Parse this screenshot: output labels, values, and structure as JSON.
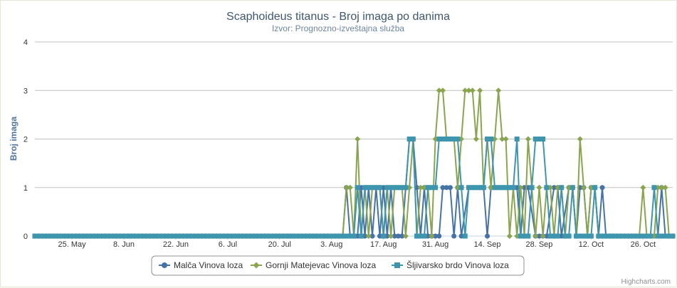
{
  "chart_data": {
    "type": "line",
    "title": "Scaphoideus titanus - Broj imaga po danima",
    "subtitle": "Izvor: Prognozno-izveštajna služba",
    "ylabel": "Broj imaga",
    "xlabel": "",
    "ylim": [
      0,
      4
    ],
    "yticks": [
      "0",
      "1",
      "2",
      "3",
      "4"
    ],
    "xlim": [
      "2012-05-15",
      "2012-11-03"
    ],
    "xticks": [
      {
        "date": "2012-05-25",
        "label": "25. May"
      },
      {
        "date": "2012-06-08",
        "label": "8. Jun"
      },
      {
        "date": "2012-06-22",
        "label": "22. Jun"
      },
      {
        "date": "2012-07-06",
        "label": "6. Jul"
      },
      {
        "date": "2012-07-20",
        "label": "20. Jul"
      },
      {
        "date": "2012-08-03",
        "label": "3. Aug"
      },
      {
        "date": "2012-08-17",
        "label": "17. Aug"
      },
      {
        "date": "2012-08-31",
        "label": "31. Aug"
      },
      {
        "date": "2012-09-14",
        "label": "14. Sep"
      },
      {
        "date": "2012-09-28",
        "label": "28. Sep"
      },
      {
        "date": "2012-10-12",
        "label": "12. Oct"
      },
      {
        "date": "2012-10-26",
        "label": "26. Oct"
      }
    ],
    "grid": true,
    "legend_position": "bottom-center",
    "credit": "Highcharts.com",
    "series": [
      {
        "name": "Malča Vinova loza",
        "color": "#4572a7",
        "marker": "circle",
        "points": [
          [
            "2012-05-15",
            0
          ],
          [
            "2012-08-06",
            0
          ],
          [
            "2012-08-07",
            1
          ],
          [
            "2012-08-08",
            0
          ],
          [
            "2012-08-10",
            0
          ],
          [
            "2012-08-11",
            1
          ],
          [
            "2012-08-12",
            0
          ],
          [
            "2012-08-13",
            1
          ],
          [
            "2012-08-14",
            0
          ],
          [
            "2012-08-15",
            1
          ],
          [
            "2012-08-16",
            0
          ],
          [
            "2012-08-17",
            1
          ],
          [
            "2012-08-18",
            0
          ],
          [
            "2012-08-19",
            1
          ],
          [
            "2012-08-20",
            0
          ],
          [
            "2012-08-22",
            0
          ],
          [
            "2012-08-23",
            1
          ],
          [
            "2012-08-24",
            2
          ],
          [
            "2012-08-25",
            2
          ],
          [
            "2012-08-26",
            1
          ],
          [
            "2012-08-27",
            0
          ],
          [
            "2012-08-28",
            1
          ],
          [
            "2012-08-29",
            0
          ],
          [
            "2012-09-01",
            0
          ],
          [
            "2012-09-02",
            1
          ],
          [
            "2012-09-03",
            1
          ],
          [
            "2012-09-04",
            1
          ],
          [
            "2012-09-05",
            0
          ],
          [
            "2012-09-06",
            1
          ],
          [
            "2012-09-07",
            0
          ],
          [
            "2012-09-09",
            1
          ],
          [
            "2012-09-10",
            1
          ],
          [
            "2012-09-12",
            1
          ],
          [
            "2012-09-13",
            1
          ],
          [
            "2012-09-14",
            0
          ],
          [
            "2012-09-15",
            1
          ],
          [
            "2012-09-16",
            1
          ],
          [
            "2012-09-18",
            1
          ],
          [
            "2012-09-20",
            1
          ],
          [
            "2012-09-22",
            1
          ],
          [
            "2012-09-23",
            0
          ],
          [
            "2012-09-24",
            1
          ],
          [
            "2012-09-25",
            1
          ],
          [
            "2012-09-27",
            0
          ],
          [
            "2012-09-30",
            0
          ],
          [
            "2012-10-02",
            1
          ],
          [
            "2012-10-03",
            1
          ],
          [
            "2012-10-04",
            0
          ],
          [
            "2012-10-06",
            1
          ],
          [
            "2012-10-07",
            1
          ],
          [
            "2012-10-08",
            0
          ],
          [
            "2012-10-09",
            1
          ],
          [
            "2012-10-10",
            1
          ],
          [
            "2012-10-11",
            0
          ],
          [
            "2012-10-12",
            1
          ],
          [
            "2012-10-13",
            1
          ],
          [
            "2012-10-14",
            0
          ],
          [
            "2012-10-15",
            1
          ],
          [
            "2012-10-16",
            0
          ],
          [
            "2012-10-30",
            0
          ],
          [
            "2012-10-31",
            1
          ],
          [
            "2012-11-01",
            0
          ],
          [
            "2012-11-03",
            0
          ]
        ]
      },
      {
        "name": "Gornji Matejevac Vinova loza",
        "color": "#89a54e",
        "marker": "diamond",
        "points": [
          [
            "2012-05-15",
            0
          ],
          [
            "2012-08-06",
            0
          ],
          [
            "2012-08-07",
            1
          ],
          [
            "2012-08-08",
            1
          ],
          [
            "2012-08-09",
            0
          ],
          [
            "2012-08-10",
            2
          ],
          [
            "2012-08-11",
            0
          ],
          [
            "2012-08-12",
            1
          ],
          [
            "2012-08-13",
            0
          ],
          [
            "2012-08-14",
            1
          ],
          [
            "2012-08-15",
            1
          ],
          [
            "2012-08-16",
            1
          ],
          [
            "2012-08-17",
            0
          ],
          [
            "2012-08-18",
            1
          ],
          [
            "2012-08-19",
            0
          ],
          [
            "2012-08-20",
            1
          ],
          [
            "2012-08-21",
            1
          ],
          [
            "2012-08-22",
            1
          ],
          [
            "2012-08-23",
            0
          ],
          [
            "2012-08-24",
            1
          ],
          [
            "2012-08-25",
            2
          ],
          [
            "2012-08-26",
            0
          ],
          [
            "2012-08-27",
            1
          ],
          [
            "2012-08-28",
            1
          ],
          [
            "2012-08-29",
            1
          ],
          [
            "2012-08-30",
            0
          ],
          [
            "2012-08-31",
            2
          ],
          [
            "2012-09-01",
            3
          ],
          [
            "2012-09-02",
            3
          ],
          [
            "2012-09-03",
            2
          ],
          [
            "2012-09-04",
            2
          ],
          [
            "2012-09-05",
            2
          ],
          [
            "2012-09-06",
            1
          ],
          [
            "2012-09-07",
            2
          ],
          [
            "2012-09-08",
            3
          ],
          [
            "2012-09-09",
            3
          ],
          [
            "2012-09-10",
            3
          ],
          [
            "2012-09-11",
            2
          ],
          [
            "2012-09-12",
            3
          ],
          [
            "2012-09-13",
            1
          ],
          [
            "2012-09-14",
            2
          ],
          [
            "2012-09-15",
            1
          ],
          [
            "2012-09-16",
            2
          ],
          [
            "2012-09-17",
            3
          ],
          [
            "2012-09-18",
            2
          ],
          [
            "2012-09-19",
            2
          ],
          [
            "2012-09-20",
            0
          ],
          [
            "2012-09-21",
            1
          ],
          [
            "2012-09-22",
            0
          ],
          [
            "2012-09-23",
            1
          ],
          [
            "2012-09-24",
            0
          ],
          [
            "2012-09-25",
            2
          ],
          [
            "2012-09-26",
            1
          ],
          [
            "2012-09-27",
            0
          ],
          [
            "2012-09-28",
            1
          ],
          [
            "2012-09-29",
            0
          ],
          [
            "2012-09-30",
            1
          ],
          [
            "2012-10-01",
            1
          ],
          [
            "2012-10-02",
            0
          ],
          [
            "2012-10-03",
            1
          ],
          [
            "2012-10-04",
            1
          ],
          [
            "2012-10-05",
            0
          ],
          [
            "2012-10-06",
            1
          ],
          [
            "2012-10-07",
            1
          ],
          [
            "2012-10-08",
            0
          ],
          [
            "2012-10-09",
            2
          ],
          [
            "2012-10-10",
            1
          ],
          [
            "2012-10-11",
            0
          ],
          [
            "2012-10-12",
            1
          ],
          [
            "2012-10-13",
            1
          ],
          [
            "2012-10-14",
            0
          ],
          [
            "2012-10-25",
            0
          ],
          [
            "2012-10-26",
            1
          ],
          [
            "2012-10-27",
            0
          ],
          [
            "2012-10-29",
            0
          ],
          [
            "2012-10-30",
            1
          ],
          [
            "2012-10-31",
            1
          ],
          [
            "2012-11-01",
            1
          ],
          [
            "2012-11-02",
            0
          ],
          [
            "2012-11-03",
            0
          ]
        ]
      },
      {
        "name": "Šljivarsko brdo Vinova loza",
        "color": "#3d96ae",
        "marker": "square",
        "points": [
          [
            "2012-05-15",
            0
          ],
          [
            "2012-08-09",
            0
          ],
          [
            "2012-08-10",
            1
          ],
          [
            "2012-08-11",
            0
          ],
          [
            "2012-08-12",
            1
          ],
          [
            "2012-08-13",
            1
          ],
          [
            "2012-08-14",
            1
          ],
          [
            "2012-08-15",
            1
          ],
          [
            "2012-08-16",
            1
          ],
          [
            "2012-08-17",
            0
          ],
          [
            "2012-08-18",
            1
          ],
          [
            "2012-08-19",
            1
          ],
          [
            "2012-08-20",
            1
          ],
          [
            "2012-08-21",
            1
          ],
          [
            "2012-08-22",
            1
          ],
          [
            "2012-08-23",
            1
          ],
          [
            "2012-08-24",
            2
          ],
          [
            "2012-08-25",
            2
          ],
          [
            "2012-08-26",
            0
          ],
          [
            "2012-08-27",
            0
          ],
          [
            "2012-08-28",
            0
          ],
          [
            "2012-08-29",
            1
          ],
          [
            "2012-08-30",
            1
          ],
          [
            "2012-08-31",
            1
          ],
          [
            "2012-09-01",
            2
          ],
          [
            "2012-09-02",
            2
          ],
          [
            "2012-09-03",
            2
          ],
          [
            "2012-09-04",
            2
          ],
          [
            "2012-09-05",
            2
          ],
          [
            "2012-09-06",
            2
          ],
          [
            "2012-09-07",
            1
          ],
          [
            "2012-09-08",
            0
          ],
          [
            "2012-09-09",
            1
          ],
          [
            "2012-09-10",
            1
          ],
          [
            "2012-09-11",
            1
          ],
          [
            "2012-09-12",
            1
          ],
          [
            "2012-09-13",
            1
          ],
          [
            "2012-09-14",
            2
          ],
          [
            "2012-09-15",
            2
          ],
          [
            "2012-09-16",
            1
          ],
          [
            "2012-09-17",
            1
          ],
          [
            "2012-09-18",
            1
          ],
          [
            "2012-09-19",
            1
          ],
          [
            "2012-09-20",
            1
          ],
          [
            "2012-09-21",
            1
          ],
          [
            "2012-09-22",
            2
          ],
          [
            "2012-09-23",
            0
          ],
          [
            "2012-09-24",
            0
          ],
          [
            "2012-09-25",
            0
          ],
          [
            "2012-09-26",
            1
          ],
          [
            "2012-09-27",
            2
          ],
          [
            "2012-09-28",
            2
          ],
          [
            "2012-09-29",
            2
          ],
          [
            "2012-09-30",
            1
          ],
          [
            "2012-10-01",
            0
          ],
          [
            "2012-10-02",
            0
          ],
          [
            "2012-10-03",
            0
          ],
          [
            "2012-10-04",
            1
          ],
          [
            "2012-10-05",
            0
          ],
          [
            "2012-10-06",
            0
          ],
          [
            "2012-10-07",
            1
          ],
          [
            "2012-10-08",
            0
          ],
          [
            "2012-10-09",
            0
          ],
          [
            "2012-10-10",
            0
          ],
          [
            "2012-10-11",
            0
          ],
          [
            "2012-10-12",
            0
          ],
          [
            "2012-10-13",
            1
          ],
          [
            "2012-10-14",
            0
          ],
          [
            "2012-10-15",
            0
          ],
          [
            "2012-10-16",
            0
          ],
          [
            "2012-10-28",
            0
          ],
          [
            "2012-10-29",
            1
          ],
          [
            "2012-10-30",
            0
          ],
          [
            "2012-11-03",
            0
          ]
        ]
      }
    ]
  }
}
